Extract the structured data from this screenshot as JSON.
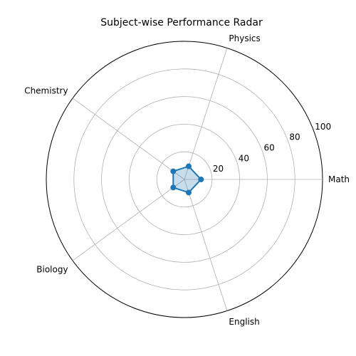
{
  "chart_data": {
    "type": "radar",
    "title": "Subject-wise Performance Radar",
    "categories": [
      "Math",
      "Physics",
      "Chemistry",
      "Biology",
      "English"
    ],
    "series": [
      {
        "values": [
          12,
          10,
          10,
          10,
          10
        ],
        "color": "#1f77b4"
      }
    ],
    "rlim": [
      0,
      100
    ],
    "rticks": [
      20,
      40,
      60,
      80,
      100
    ],
    "rtick_labels": [
      "20",
      "40",
      "60",
      "80",
      "100"
    ],
    "grid": true
  }
}
